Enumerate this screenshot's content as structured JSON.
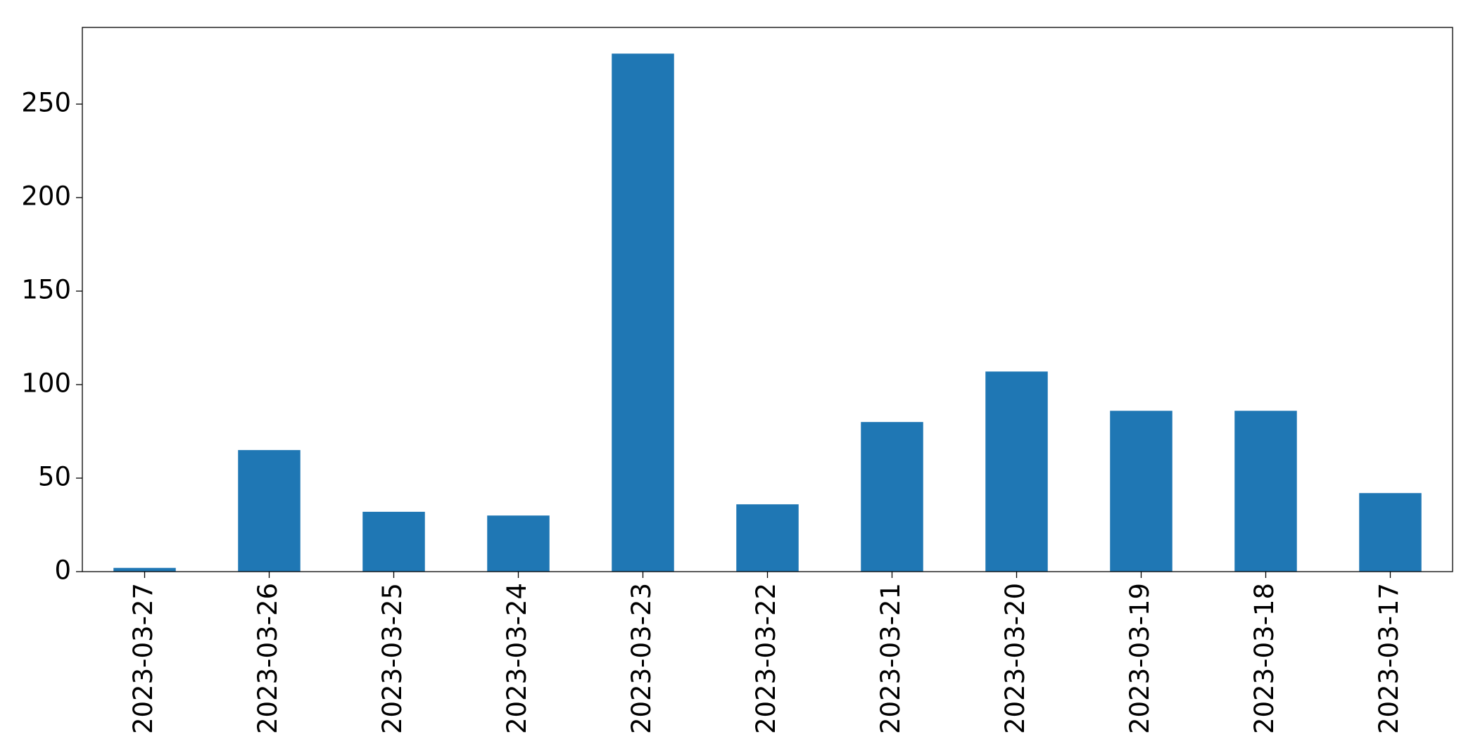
{
  "chart_data": {
    "type": "bar",
    "categories": [
      "2023-03-27",
      "2023-03-26",
      "2023-03-25",
      "2023-03-24",
      "2023-03-23",
      "2023-03-22",
      "2023-03-21",
      "2023-03-20",
      "2023-03-19",
      "2023-03-18",
      "2023-03-17"
    ],
    "values": [
      2,
      65,
      32,
      30,
      277,
      36,
      80,
      107,
      86,
      86,
      42
    ],
    "color": "#1f77b4",
    "ylim": [
      0,
      291
    ],
    "yticks": [
      0,
      50,
      100,
      150,
      200,
      250
    ],
    "grid": false
  }
}
